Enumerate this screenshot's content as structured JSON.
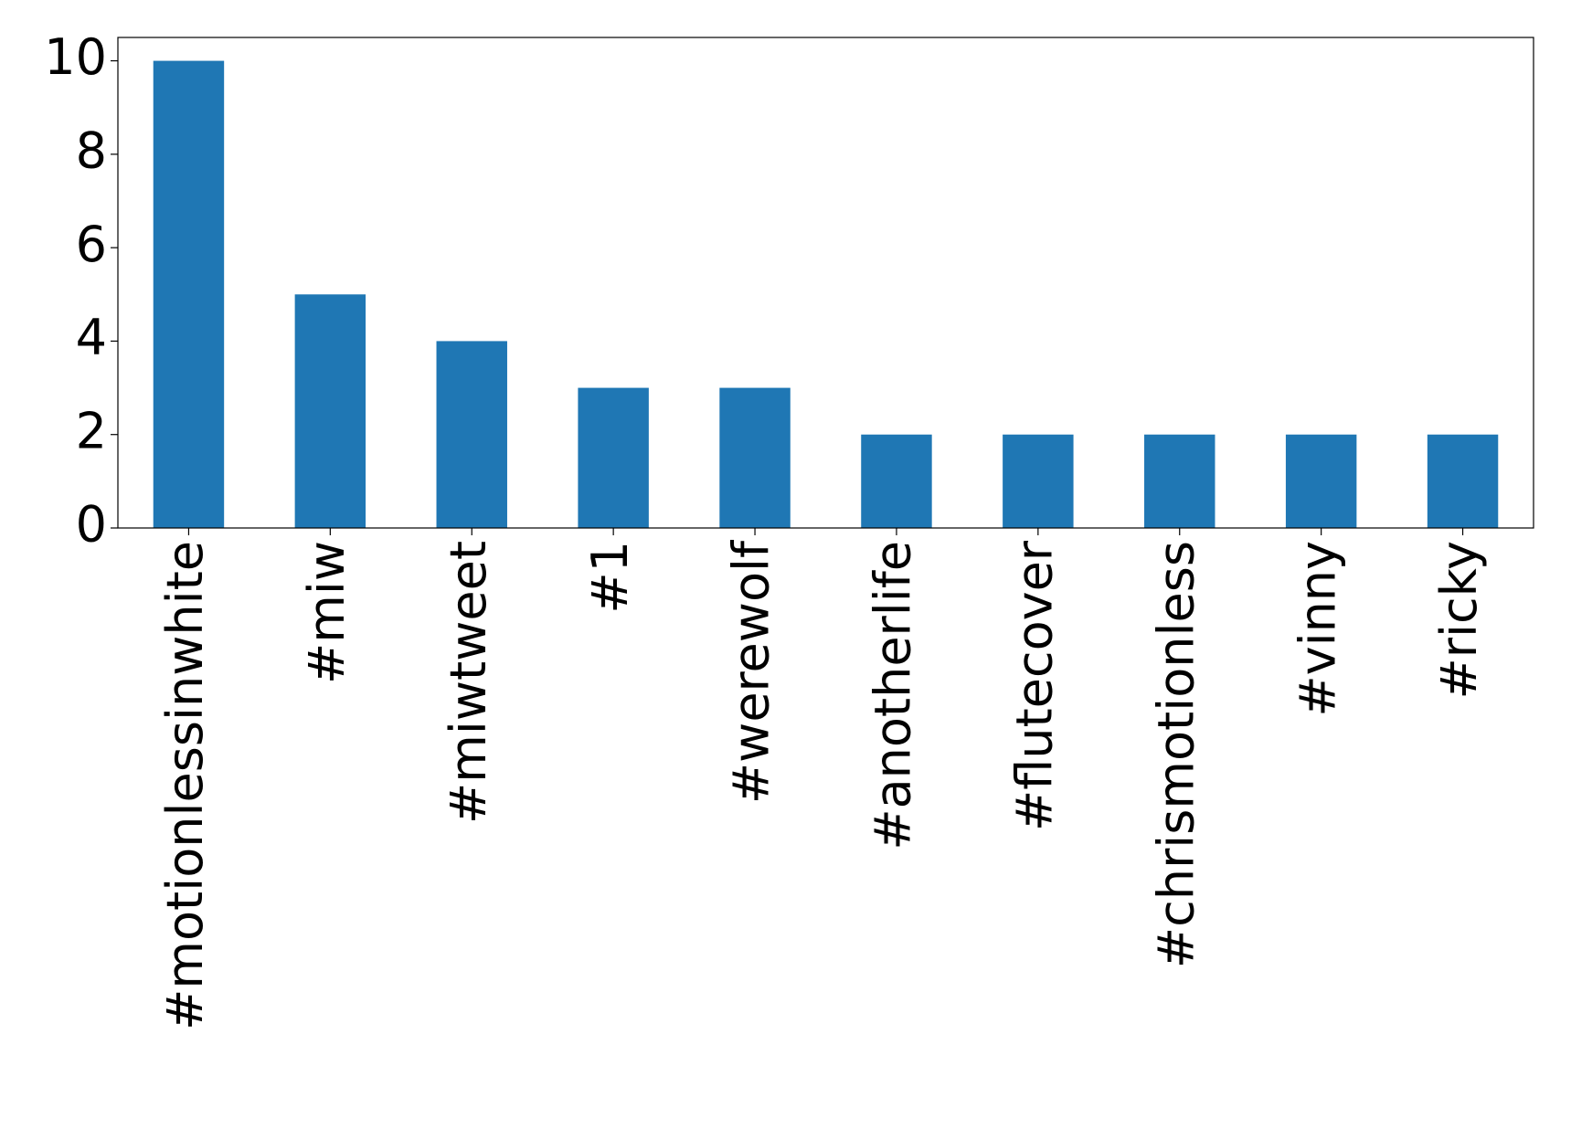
{
  "chart_data": {
    "type": "bar",
    "categories": [
      "#motionlessinwhite",
      "#miw",
      "#miwtweet",
      "#1",
      "#werewolf",
      "#anotherlife",
      "#flutecover",
      "#chrismotionless",
      "#vinny",
      "#ricky"
    ],
    "values": [
      10,
      5,
      4,
      3,
      3,
      2,
      2,
      2,
      2,
      2
    ],
    "color": "#1f77b4",
    "ylim": [
      0,
      10.5
    ],
    "yticks": [
      0,
      2,
      4,
      6,
      8,
      10
    ],
    "grid": false
  }
}
